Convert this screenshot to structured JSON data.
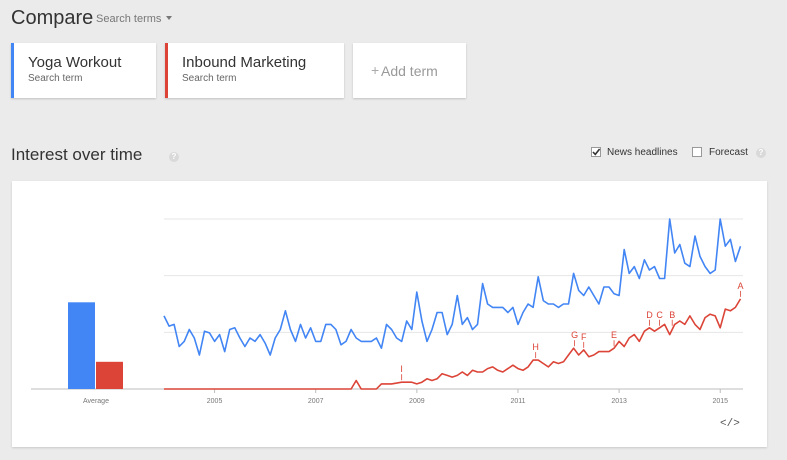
{
  "header": {
    "title": "Compare",
    "search_terms_label": "Search terms"
  },
  "terms": [
    {
      "name": "Yoga Workout",
      "sub": "Search term",
      "color": "#4285f4"
    },
    {
      "name": "Inbound Marketing",
      "sub": "Search term",
      "color": "#db4437"
    }
  ],
  "add_term": {
    "plus": "+",
    "label": "Add term"
  },
  "section": {
    "title": "Interest over time",
    "help": "?",
    "news_headlines": {
      "label": "News headlines",
      "checked": true
    },
    "forecast": {
      "label": "Forecast",
      "checked": false
    }
  },
  "embed_label": "</>",
  "chart_data": {
    "type": "line",
    "x_ticks": [
      "2005",
      "2007",
      "2009",
      "2011",
      "2013",
      "2015"
    ],
    "ylim": [
      0,
      100
    ],
    "grid": true,
    "average": {
      "label": "Average",
      "values": [
        {
          "series": "Yoga Workout",
          "value": 51,
          "color": "#4285f4"
        },
        {
          "series": "Inbound Marketing",
          "value": 16,
          "color": "#db4437"
        }
      ]
    },
    "series": [
      {
        "name": "Yoga Workout",
        "color": "#4285f4",
        "points": [
          [
            2004.0,
            43
          ],
          [
            2004.1,
            37
          ],
          [
            2004.2,
            38
          ],
          [
            2004.3,
            25
          ],
          [
            2004.4,
            28
          ],
          [
            2004.5,
            35
          ],
          [
            2004.6,
            30
          ],
          [
            2004.7,
            20
          ],
          [
            2004.8,
            34
          ],
          [
            2004.9,
            33
          ],
          [
            2005.0,
            28
          ],
          [
            2005.1,
            32
          ],
          [
            2005.2,
            22
          ],
          [
            2005.3,
            35
          ],
          [
            2005.4,
            36
          ],
          [
            2005.5,
            30
          ],
          [
            2005.6,
            25
          ],
          [
            2005.7,
            30
          ],
          [
            2005.8,
            28
          ],
          [
            2005.9,
            32
          ],
          [
            2006.0,
            27
          ],
          [
            2006.1,
            20
          ],
          [
            2006.2,
            30
          ],
          [
            2006.3,
            35
          ],
          [
            2006.4,
            46
          ],
          [
            2006.5,
            35
          ],
          [
            2006.6,
            28
          ],
          [
            2006.7,
            38
          ],
          [
            2006.8,
            30
          ],
          [
            2006.9,
            36
          ],
          [
            2007.0,
            28
          ],
          [
            2007.1,
            28
          ],
          [
            2007.2,
            38
          ],
          [
            2007.3,
            38
          ],
          [
            2007.4,
            35
          ],
          [
            2007.5,
            26
          ],
          [
            2007.6,
            28
          ],
          [
            2007.7,
            35
          ],
          [
            2007.8,
            30
          ],
          [
            2007.9,
            28
          ],
          [
            2008.0,
            28
          ],
          [
            2008.1,
            28
          ],
          [
            2008.2,
            30
          ],
          [
            2008.3,
            24
          ],
          [
            2008.4,
            38
          ],
          [
            2008.5,
            35
          ],
          [
            2008.6,
            30
          ],
          [
            2008.7,
            28
          ],
          [
            2008.8,
            40
          ],
          [
            2008.9,
            35
          ],
          [
            2009.0,
            57
          ],
          [
            2009.1,
            40
          ],
          [
            2009.2,
            28
          ],
          [
            2009.3,
            35
          ],
          [
            2009.4,
            45
          ],
          [
            2009.5,
            45
          ],
          [
            2009.6,
            32
          ],
          [
            2009.7,
            38
          ],
          [
            2009.8,
            55
          ],
          [
            2009.9,
            38
          ],
          [
            2010.0,
            42
          ],
          [
            2010.1,
            35
          ],
          [
            2010.2,
            38
          ],
          [
            2010.3,
            62
          ],
          [
            2010.4,
            50
          ],
          [
            2010.5,
            48
          ],
          [
            2010.6,
            48
          ],
          [
            2010.7,
            48
          ],
          [
            2010.8,
            45
          ],
          [
            2010.9,
            48
          ],
          [
            2011.0,
            38
          ],
          [
            2011.1,
            45
          ],
          [
            2011.2,
            50
          ],
          [
            2011.3,
            48
          ],
          [
            2011.4,
            66
          ],
          [
            2011.5,
            52
          ],
          [
            2011.6,
            50
          ],
          [
            2011.7,
            50
          ],
          [
            2011.8,
            48
          ],
          [
            2011.9,
            50
          ],
          [
            2012.0,
            50
          ],
          [
            2012.1,
            68
          ],
          [
            2012.2,
            58
          ],
          [
            2012.3,
            55
          ],
          [
            2012.4,
            60
          ],
          [
            2012.5,
            55
          ],
          [
            2012.6,
            50
          ],
          [
            2012.7,
            60
          ],
          [
            2012.8,
            60
          ],
          [
            2012.9,
            56
          ],
          [
            2013.0,
            55
          ],
          [
            2013.1,
            82
          ],
          [
            2013.2,
            68
          ],
          [
            2013.3,
            72
          ],
          [
            2013.4,
            65
          ],
          [
            2013.5,
            76
          ],
          [
            2013.6,
            70
          ],
          [
            2013.7,
            72
          ],
          [
            2013.8,
            65
          ],
          [
            2013.9,
            65
          ],
          [
            2014.0,
            100
          ],
          [
            2014.1,
            80
          ],
          [
            2014.2,
            85
          ],
          [
            2014.3,
            74
          ],
          [
            2014.4,
            72
          ],
          [
            2014.5,
            90
          ],
          [
            2014.6,
            78
          ],
          [
            2014.7,
            72
          ],
          [
            2014.8,
            68
          ],
          [
            2014.9,
            70
          ],
          [
            2015.0,
            100
          ],
          [
            2015.1,
            84
          ],
          [
            2015.2,
            88
          ],
          [
            2015.3,
            75
          ],
          [
            2015.4,
            84
          ]
        ]
      },
      {
        "name": "Inbound Marketing",
        "color": "#db4437",
        "points": [
          [
            2004.0,
            0
          ],
          [
            2007.7,
            0
          ],
          [
            2007.8,
            5
          ],
          [
            2007.9,
            0
          ],
          [
            2008.2,
            0
          ],
          [
            2008.3,
            3
          ],
          [
            2008.5,
            3
          ],
          [
            2008.7,
            4
          ],
          [
            2008.9,
            4
          ],
          [
            2009.0,
            3
          ],
          [
            2009.1,
            4
          ],
          [
            2009.2,
            6
          ],
          [
            2009.3,
            5
          ],
          [
            2009.4,
            6
          ],
          [
            2009.5,
            9
          ],
          [
            2009.6,
            8
          ],
          [
            2009.7,
            7
          ],
          [
            2009.8,
            8
          ],
          [
            2009.9,
            10
          ],
          [
            2010.0,
            8
          ],
          [
            2010.1,
            11
          ],
          [
            2010.2,
            10
          ],
          [
            2010.3,
            10
          ],
          [
            2010.4,
            12
          ],
          [
            2010.5,
            13
          ],
          [
            2010.6,
            11
          ],
          [
            2010.7,
            10
          ],
          [
            2010.8,
            12
          ],
          [
            2010.9,
            14
          ],
          [
            2011.0,
            12
          ],
          [
            2011.1,
            11
          ],
          [
            2011.2,
            13
          ],
          [
            2011.3,
            17
          ],
          [
            2011.4,
            17
          ],
          [
            2011.5,
            15
          ],
          [
            2011.6,
            13
          ],
          [
            2011.7,
            16
          ],
          [
            2011.8,
            15
          ],
          [
            2011.9,
            16
          ],
          [
            2012.0,
            20
          ],
          [
            2012.1,
            24
          ],
          [
            2012.2,
            20
          ],
          [
            2012.3,
            23
          ],
          [
            2012.4,
            19
          ],
          [
            2012.5,
            20
          ],
          [
            2012.6,
            22
          ],
          [
            2012.7,
            22
          ],
          [
            2012.8,
            22
          ],
          [
            2012.9,
            24
          ],
          [
            2013.0,
            28
          ],
          [
            2013.1,
            25
          ],
          [
            2013.2,
            30
          ],
          [
            2013.3,
            32
          ],
          [
            2013.4,
            28
          ],
          [
            2013.5,
            34
          ],
          [
            2013.6,
            36
          ],
          [
            2013.7,
            34
          ],
          [
            2013.8,
            36
          ],
          [
            2013.9,
            38
          ],
          [
            2014.0,
            32
          ],
          [
            2014.1,
            38
          ],
          [
            2014.2,
            40
          ],
          [
            2014.3,
            38
          ],
          [
            2014.4,
            43
          ],
          [
            2014.5,
            38
          ],
          [
            2014.6,
            35
          ],
          [
            2014.7,
            42
          ],
          [
            2014.8,
            44
          ],
          [
            2014.9,
            43
          ],
          [
            2015.0,
            36
          ],
          [
            2015.1,
            47
          ],
          [
            2015.2,
            46
          ],
          [
            2015.3,
            48
          ],
          [
            2015.4,
            53
          ]
        ]
      }
    ],
    "annotations": [
      {
        "label": "I",
        "x": 2008.7,
        "y": 4
      },
      {
        "label": "H",
        "x": 2011.35,
        "y": 17
      },
      {
        "label": "G",
        "x": 2012.12,
        "y": 24
      },
      {
        "label": "F",
        "x": 2012.3,
        "y": 23
      },
      {
        "label": "E",
        "x": 2012.9,
        "y": 24
      },
      {
        "label": "D",
        "x": 2013.6,
        "y": 36
      },
      {
        "label": "C",
        "x": 2013.8,
        "y": 36
      },
      {
        "label": "B",
        "x": 2014.05,
        "y": 36
      },
      {
        "label": "A",
        "x": 2015.4,
        "y": 53
      }
    ]
  }
}
